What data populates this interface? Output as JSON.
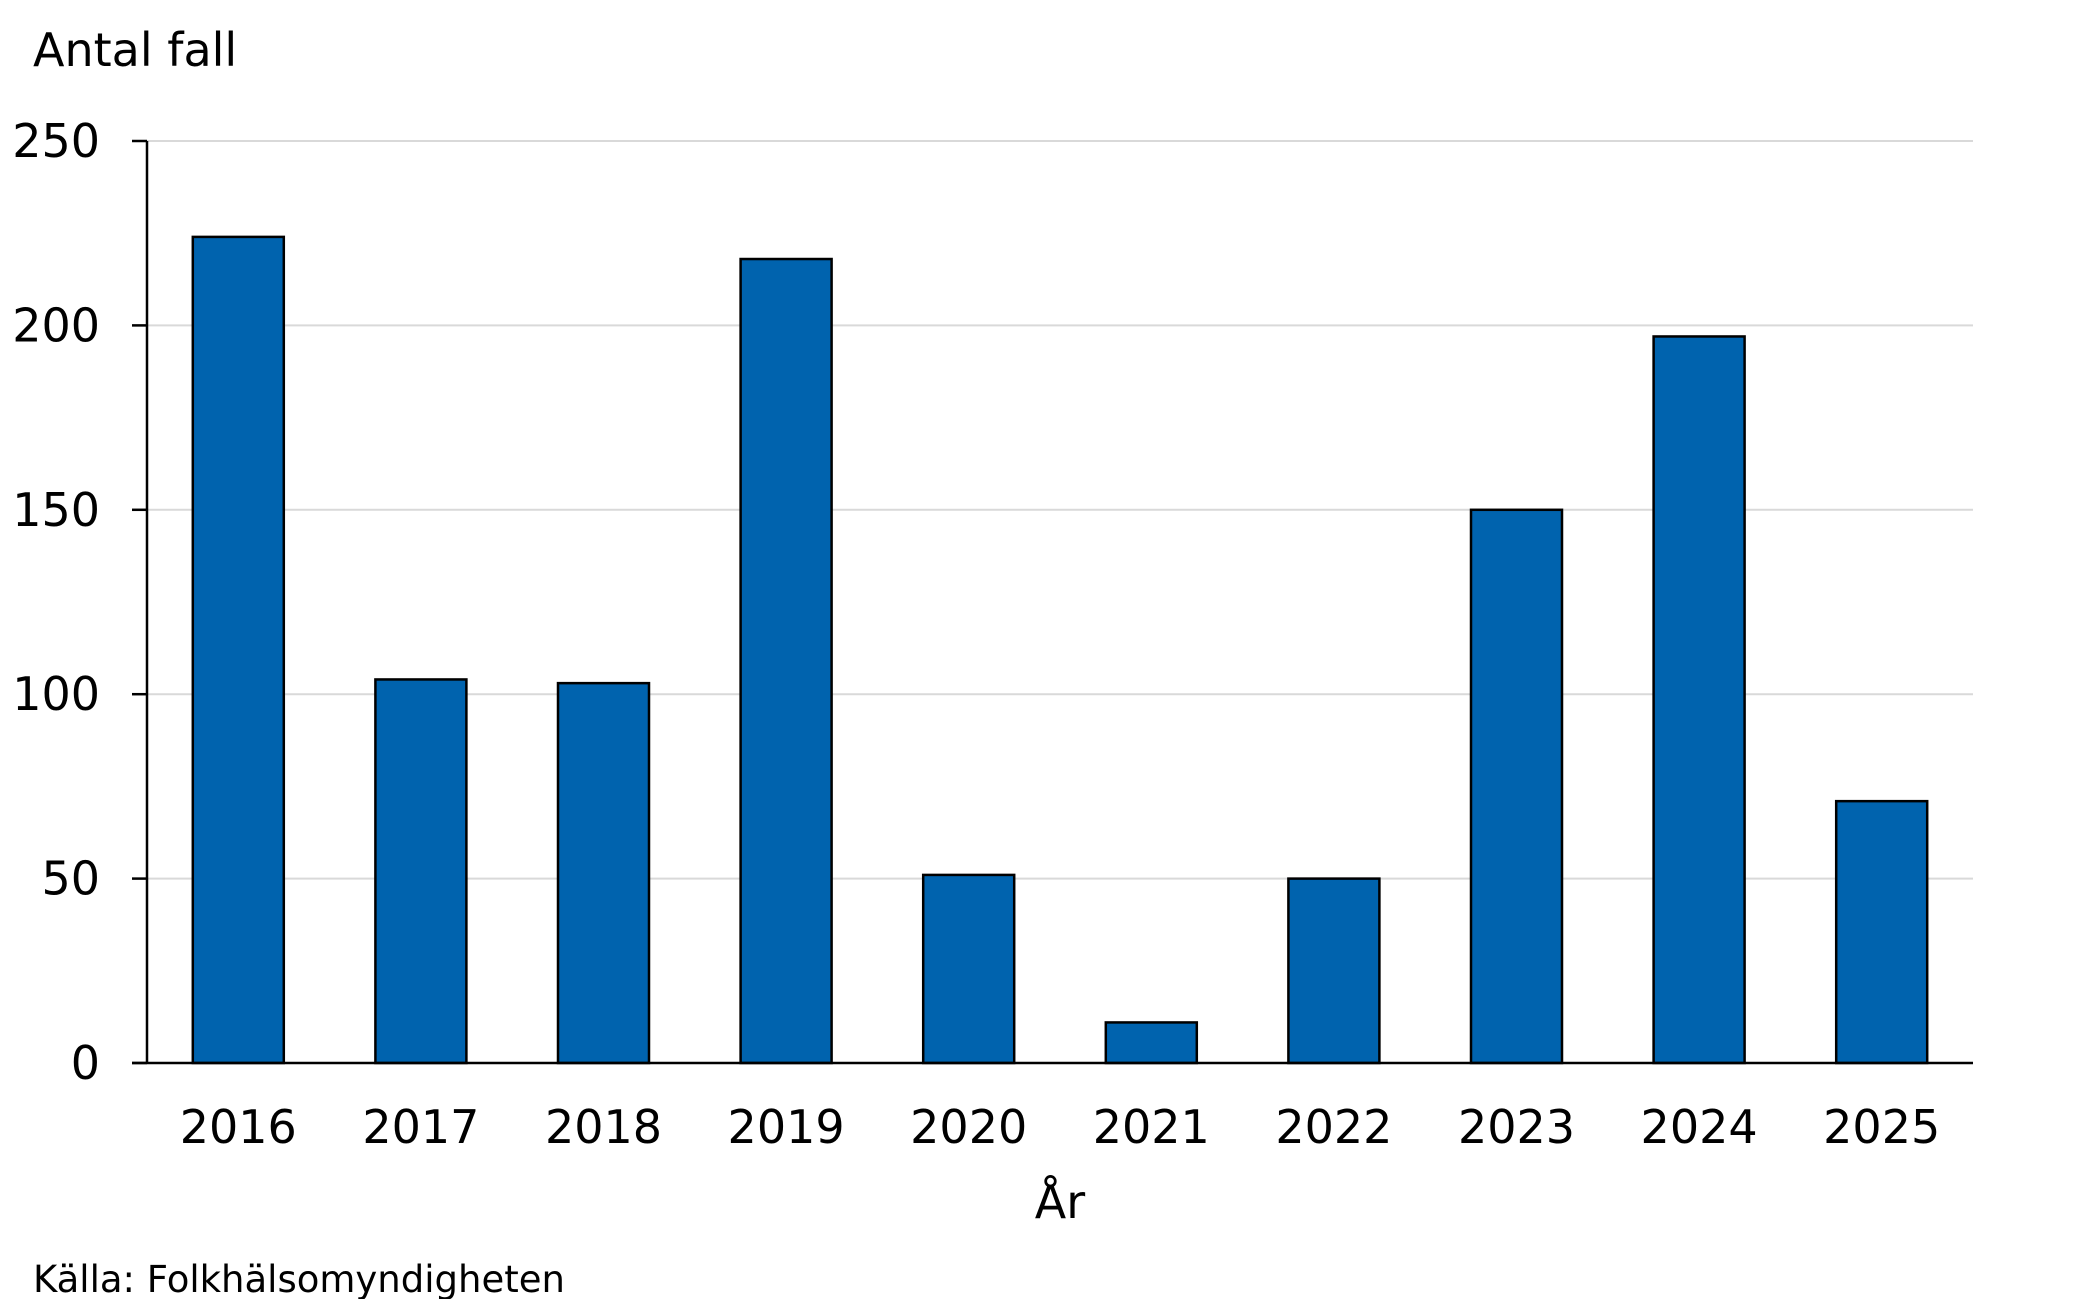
{
  "chart_data": {
    "type": "bar",
    "categories": [
      "2016",
      "2017",
      "2018",
      "2019",
      "2020",
      "2021",
      "2022",
      "2023",
      "2024",
      "2025"
    ],
    "values": [
      224,
      104,
      103,
      218,
      51,
      11,
      50,
      150,
      197,
      71
    ],
    "ylabel": "Antal fall",
    "xlabel": "År",
    "ylim": [
      0,
      250
    ],
    "yticks": [
      "0",
      "50",
      "100",
      "150",
      "200",
      "250"
    ],
    "grid": true,
    "legend": "none",
    "bar_color": "#0063AE",
    "source": "Källa: Folkhälsomyndigheten"
  }
}
